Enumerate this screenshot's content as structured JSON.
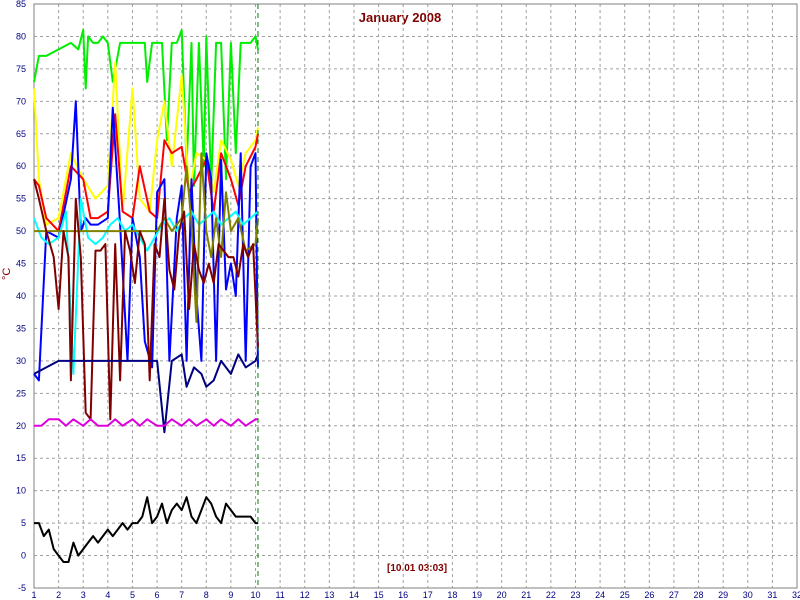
{
  "chart_data": {
    "type": "line",
    "title": "January 2008",
    "ylabel": "°C",
    "xlabel": "",
    "xlim": [
      1,
      32
    ],
    "ylim": [
      -5,
      85
    ],
    "x_ticks": [
      "1",
      "2",
      "3",
      "4",
      "5",
      "6",
      "7",
      "8",
      "9",
      "10",
      "11",
      "12",
      "13",
      "14",
      "15",
      "16",
      "17",
      "18",
      "19",
      "20",
      "21",
      "22",
      "23",
      "24",
      "25",
      "26",
      "27",
      "28",
      "29",
      "30",
      "31",
      "32"
    ],
    "y_ticks": [
      "-5",
      "0",
      "5",
      "10",
      "15",
      "20",
      "25",
      "30",
      "35",
      "40",
      "45",
      "50",
      "55",
      "60",
      "65",
      "70",
      "75",
      "80",
      "85"
    ],
    "grid": true,
    "cursor": {
      "x": 10.1,
      "label": "[10.01 03:03]"
    },
    "series": [
      {
        "color": "#00ee00",
        "x": [
          1.0,
          1.2,
          1.3,
          1.5,
          2.0,
          2.5,
          2.8,
          3.0,
          3.1,
          3.2,
          3.4,
          3.6,
          3.8,
          4.0,
          4.2,
          4.5,
          5.0,
          5.2,
          5.5,
          5.6,
          5.8,
          6.0,
          6.2,
          6.4,
          6.6,
          6.8,
          7.0,
          7.2,
          7.4,
          7.5,
          7.7,
          7.9,
          8.0,
          8.2,
          8.4,
          8.6,
          8.8,
          9.0,
          9.2,
          9.4,
          9.6,
          9.8,
          10.0,
          10.1
        ],
        "y": [
          73,
          77,
          77,
          77,
          78,
          79,
          78,
          81,
          72,
          80,
          79,
          79,
          80,
          79,
          73,
          79,
          79,
          79,
          79,
          73,
          79,
          79,
          79,
          64,
          79,
          79,
          81,
          60,
          79,
          57,
          79,
          60,
          80,
          57,
          79,
          79,
          58,
          79,
          62,
          79,
          79,
          79,
          80,
          78
        ]
      },
      {
        "color": "#ffff00",
        "x": [
          1.0,
          1.2,
          1.5,
          2.0,
          2.5,
          3.0,
          3.5,
          4.0,
          4.3,
          4.6,
          5.0,
          5.3,
          5.7,
          6.0,
          6.3,
          6.6,
          7.0,
          7.3,
          7.6,
          8.0,
          8.3,
          8.6,
          9.0,
          9.3,
          9.6,
          10.0,
          10.1
        ],
        "y": [
          72,
          58,
          51,
          52,
          62,
          58,
          55,
          57,
          76,
          53,
          72,
          55,
          53,
          64,
          70,
          60,
          74,
          56,
          62,
          61,
          56,
          64,
          61,
          57,
          62,
          64,
          66
        ]
      },
      {
        "color": "#ff0000",
        "x": [
          1.0,
          1.2,
          1.5,
          2.0,
          2.5,
          3.0,
          3.3,
          3.6,
          4.0,
          4.3,
          4.6,
          5.0,
          5.3,
          5.7,
          6.0,
          6.3,
          6.6,
          7.0,
          7.3,
          7.6,
          8.0,
          8.3,
          8.6,
          9.0,
          9.3,
          9.6,
          10.0,
          10.1
        ],
        "y": [
          58,
          57,
          52,
          50,
          60,
          58,
          52,
          52,
          53,
          68,
          53,
          52,
          60,
          53,
          52,
          64,
          62,
          63,
          56,
          58,
          61,
          53,
          62,
          58,
          54,
          60,
          63,
          65
        ]
      },
      {
        "color": "#0000ff",
        "x": [
          1.0,
          1.2,
          1.5,
          2.0,
          2.5,
          2.7,
          2.9,
          3.1,
          3.3,
          3.6,
          4.0,
          4.2,
          4.5,
          4.8,
          5.0,
          5.3,
          5.5,
          5.8,
          6.0,
          6.3,
          6.5,
          6.8,
          7.0,
          7.2,
          7.4,
          7.6,
          7.8,
          8.0,
          8.2,
          8.4,
          8.6,
          8.8,
          9.0,
          9.2,
          9.4,
          9.6,
          9.8,
          10.0,
          10.1
        ],
        "y": [
          28,
          27,
          50,
          49,
          58,
          70,
          50,
          52,
          51,
          51,
          52,
          69,
          51,
          30,
          52,
          46,
          33,
          29,
          56,
          58,
          30,
          52,
          57,
          30,
          58,
          40,
          30,
          62,
          58,
          30,
          61,
          41,
          45,
          40,
          62,
          30,
          60,
          62,
          29
        ]
      },
      {
        "color": "#00ffff",
        "x": [
          1.0,
          1.3,
          1.6,
          2.0,
          2.3,
          2.6,
          2.9,
          3.2,
          3.5,
          3.8,
          4.1,
          4.4,
          4.7,
          5.0,
          5.3,
          5.6,
          5.9,
          6.2,
          6.5,
          6.8,
          7.1,
          7.4,
          7.7,
          8.0,
          8.3,
          8.6,
          8.9,
          9.2,
          9.5,
          9.8,
          10.1
        ],
        "y": [
          52,
          49,
          48,
          49,
          53,
          28,
          55,
          49,
          48,
          49,
          51,
          52,
          50,
          51,
          49,
          47,
          49,
          51,
          52,
          50,
          52,
          53,
          51,
          52,
          53,
          51,
          52,
          53,
          51,
          52,
          53
        ]
      },
      {
        "color": "#808000",
        "x": [
          1.0,
          1.5,
          2.0,
          3.0,
          4.0,
          5.0,
          6.0,
          6.3,
          6.6,
          7.0,
          7.2,
          7.4,
          7.6,
          7.8,
          8.0,
          8.2,
          8.4,
          8.6,
          8.8,
          9.0,
          9.3,
          9.6,
          10.0,
          10.1
        ],
        "y": [
          50,
          50,
          50,
          50,
          50,
          50,
          50,
          52,
          50,
          52,
          60,
          51,
          36,
          62,
          50,
          46,
          52,
          46,
          56,
          50,
          52,
          47,
          48,
          52
        ]
      },
      {
        "color": "#800000",
        "x": [
          1.0,
          1.2,
          1.5,
          1.8,
          2.0,
          2.2,
          2.4,
          2.5,
          2.7,
          2.9,
          3.1,
          3.3,
          3.5,
          3.7,
          3.9,
          4.1,
          4.3,
          4.5,
          4.7,
          4.9,
          5.1,
          5.3,
          5.5,
          5.7,
          5.9,
          6.1,
          6.3,
          6.5,
          6.7,
          6.9,
          7.1,
          7.3,
          7.5,
          7.7,
          7.9,
          8.1,
          8.3,
          8.5,
          8.7,
          8.9,
          9.1,
          9.3,
          9.5,
          9.7,
          9.9,
          10.1
        ],
        "y": [
          58,
          55,
          50,
          46,
          38,
          50,
          46,
          27,
          55,
          46,
          22,
          21,
          47,
          47,
          48,
          21,
          48,
          27,
          50,
          47,
          42,
          50,
          48,
          27,
          48,
          46,
          55,
          44,
          41,
          50,
          53,
          38,
          48,
          44,
          42,
          45,
          42,
          48,
          47,
          46,
          46,
          43,
          48,
          46,
          48,
          32
        ]
      },
      {
        "color": "#000080",
        "x": [
          1.0,
          1.5,
          2.0,
          3.0,
          4.0,
          5.0,
          6.0,
          6.3,
          6.6,
          7.0,
          7.2,
          7.5,
          7.8,
          8.0,
          8.3,
          8.6,
          9.0,
          9.3,
          9.6,
          10.0,
          10.1
        ],
        "y": [
          28,
          29,
          30,
          30,
          30,
          30,
          30,
          19,
          30,
          31,
          26,
          29,
          28,
          26,
          27,
          30,
          28,
          31,
          29,
          30,
          31
        ]
      },
      {
        "color": "#dd00dd",
        "x": [
          1.0,
          1.3,
          1.6,
          2.0,
          2.3,
          2.6,
          3.0,
          3.3,
          3.6,
          4.0,
          4.3,
          4.6,
          5.0,
          5.3,
          5.6,
          6.0,
          6.3,
          6.6,
          7.0,
          7.3,
          7.6,
          8.0,
          8.3,
          8.6,
          9.0,
          9.3,
          9.6,
          10.0,
          10.1
        ],
        "y": [
          20,
          20,
          21,
          21,
          20,
          21,
          20,
          21,
          20,
          20,
          21,
          20,
          21,
          20,
          21,
          20,
          20,
          21,
          20,
          21,
          20,
          21,
          20,
          21,
          20,
          21,
          20,
          21,
          21
        ]
      },
      {
        "color": "#000000",
        "x": [
          1.0,
          1.2,
          1.4,
          1.6,
          1.8,
          2.0,
          2.2,
          2.4,
          2.6,
          2.8,
          3.0,
          3.2,
          3.4,
          3.6,
          3.8,
          4.0,
          4.2,
          4.4,
          4.6,
          4.8,
          5.0,
          5.2,
          5.4,
          5.6,
          5.8,
          6.0,
          6.2,
          6.4,
          6.6,
          6.8,
          7.0,
          7.2,
          7.4,
          7.6,
          7.8,
          8.0,
          8.2,
          8.4,
          8.6,
          8.8,
          9.0,
          9.2,
          9.4,
          9.6,
          9.8,
          10.0,
          10.1
        ],
        "y": [
          5,
          5,
          3,
          4,
          1,
          0,
          -1,
          -1,
          2,
          0,
          1,
          2,
          3,
          2,
          3,
          4,
          3,
          4,
          5,
          4,
          5,
          5,
          6,
          9,
          5,
          6,
          8,
          5,
          7,
          8,
          7,
          9,
          6,
          5,
          7,
          9,
          8,
          6,
          5,
          8,
          7,
          6,
          6,
          6,
          6,
          5,
          5
        ]
      }
    ]
  }
}
